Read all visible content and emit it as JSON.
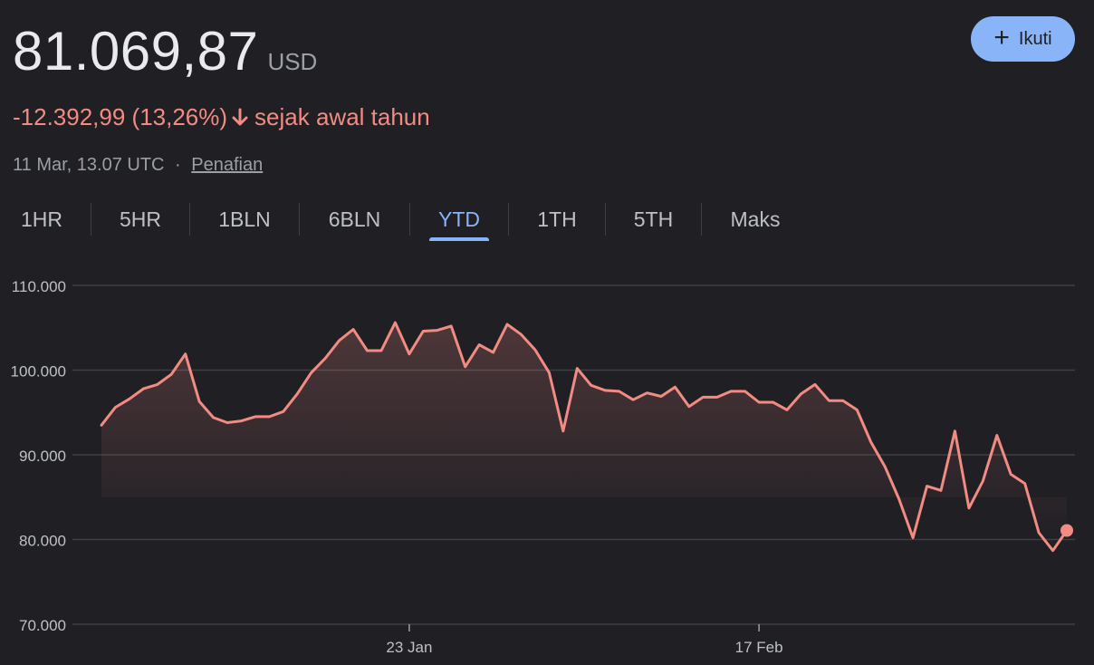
{
  "header": {
    "price": "81.069,87",
    "currency": "USD",
    "change": "-12.392,99 (13,26%)",
    "change_suffix": "sejak awal tahun",
    "timestamp": "11 Mar, 13.07 UTC",
    "separator": "·",
    "disclaimer": "Penafian",
    "follow_label": "Ikuti",
    "follow_icon": "plus-icon"
  },
  "colors": {
    "background": "#1f1f24",
    "line": "#f28b82",
    "accent": "#8ab4f8",
    "grid": "#3c4043"
  },
  "tabs": [
    {
      "label": "1HR",
      "active": false
    },
    {
      "label": "5HR",
      "active": false
    },
    {
      "label": "1BLN",
      "active": false
    },
    {
      "label": "6BLN",
      "active": false
    },
    {
      "label": "YTD",
      "active": true
    },
    {
      "label": "1TH",
      "active": false
    },
    {
      "label": "5TH",
      "active": false
    },
    {
      "label": "Maks",
      "active": false
    }
  ],
  "chart_data": {
    "type": "area",
    "title": "",
    "xlabel": "",
    "ylabel": "",
    "ylim": [
      70000,
      110000
    ],
    "yticks": [
      {
        "value": 110000,
        "label": "110.000"
      },
      {
        "value": 100000,
        "label": "100.000"
      },
      {
        "value": 90000,
        "label": "90.000"
      },
      {
        "value": 80000,
        "label": "80.000"
      },
      {
        "value": 70000,
        "label": "70.000"
      }
    ],
    "x_range": [
      "2025-01-01",
      "2025-03-11"
    ],
    "xticks": [
      {
        "date": "2025-01-23",
        "label": "23 Jan"
      },
      {
        "date": "2025-02-17",
        "label": "17 Feb"
      }
    ],
    "grid": true,
    "series": [
      {
        "x": [
          "2025-01-01",
          "2025-01-02",
          "2025-01-03",
          "2025-01-04",
          "2025-01-05",
          "2025-01-06",
          "2025-01-07",
          "2025-01-08",
          "2025-01-09",
          "2025-01-10",
          "2025-01-11",
          "2025-01-12",
          "2025-01-13",
          "2025-01-14",
          "2025-01-15",
          "2025-01-16",
          "2025-01-17",
          "2025-01-18",
          "2025-01-19",
          "2025-01-20",
          "2025-01-21",
          "2025-01-22",
          "2025-01-23",
          "2025-01-24",
          "2025-01-25",
          "2025-01-26",
          "2025-01-27",
          "2025-01-28",
          "2025-01-29",
          "2025-01-30",
          "2025-01-31",
          "2025-02-01",
          "2025-02-02",
          "2025-02-03",
          "2025-02-04",
          "2025-02-05",
          "2025-02-06",
          "2025-02-07",
          "2025-02-08",
          "2025-02-09",
          "2025-02-10",
          "2025-02-11",
          "2025-02-12",
          "2025-02-13",
          "2025-02-14",
          "2025-02-15",
          "2025-02-16",
          "2025-02-17",
          "2025-02-18",
          "2025-02-19",
          "2025-02-20",
          "2025-02-21",
          "2025-02-22",
          "2025-02-23",
          "2025-02-24",
          "2025-02-25",
          "2025-02-26",
          "2025-02-27",
          "2025-02-28",
          "2025-03-01",
          "2025-03-02",
          "2025-03-03",
          "2025-03-04",
          "2025-03-05",
          "2025-03-06",
          "2025-03-07",
          "2025-03-08",
          "2025-03-09",
          "2025-03-10",
          "2025-03-11"
        ],
        "y": [
          93500,
          95600,
          96600,
          97800,
          98300,
          99500,
          101900,
          96300,
          94400,
          93800,
          94000,
          94500,
          94500,
          95100,
          97200,
          99700,
          101400,
          103500,
          104800,
          102300,
          102300,
          105600,
          101900,
          104600,
          104700,
          105200,
          100400,
          103000,
          102100,
          105400,
          104200,
          102400,
          99700,
          92800,
          100200,
          98200,
          97600,
          97500,
          96500,
          97300,
          96900,
          98000,
          95700,
          96800,
          96800,
          97500,
          97500,
          96200,
          96200,
          95300,
          97200,
          98300,
          96400,
          96400,
          95300,
          91500,
          88600,
          84800,
          80200,
          86300,
          85800,
          92800,
          83700,
          86900,
          92300,
          87700,
          86600,
          80800,
          78700,
          81069.87
        ]
      }
    ],
    "last_point_marker": true
  }
}
